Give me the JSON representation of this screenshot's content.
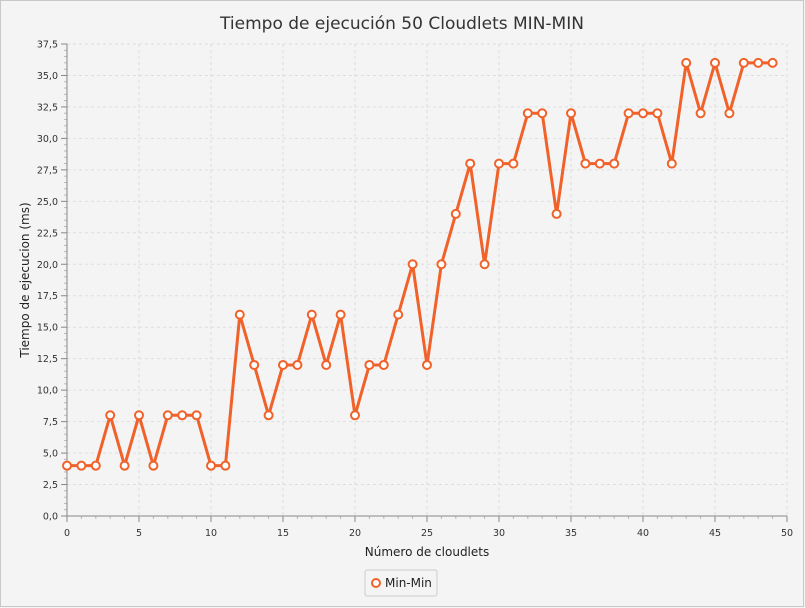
{
  "chart_data": {
    "type": "line",
    "title": "Tiempo de ejecución 50 Cloudlets MIN-MIN",
    "xlabel": "Número de cloudlets",
    "ylabel": "Tiempo de ejecucion (ms)",
    "xlim": [
      0,
      50
    ],
    "ylim": [
      0,
      37.5
    ],
    "x_ticks": [
      "0",
      "5",
      "10",
      "15",
      "20",
      "25",
      "30",
      "35",
      "40",
      "45",
      "50"
    ],
    "y_ticks": [
      "0,0",
      "2,5",
      "5,0",
      "7,5",
      "10,0",
      "12,5",
      "15,0",
      "17,5",
      "20,0",
      "22,5",
      "25,0",
      "27,5",
      "30,0",
      "32,5",
      "35,0",
      "37,5"
    ],
    "grid": true,
    "legend_position": "bottom-center",
    "series": [
      {
        "name": "Min-Min",
        "color": "#f0622a",
        "x": [
          0,
          1,
          2,
          3,
          4,
          5,
          6,
          7,
          8,
          9,
          10,
          11,
          12,
          13,
          14,
          15,
          16,
          17,
          18,
          19,
          20,
          21,
          22,
          23,
          24,
          25,
          26,
          27,
          28,
          29,
          30,
          31,
          32,
          33,
          34,
          35,
          36,
          37,
          38,
          39,
          40,
          41,
          42,
          43,
          44,
          45,
          46,
          47,
          48,
          49
        ],
        "y": [
          4,
          4,
          4,
          8,
          4,
          8,
          4,
          8,
          8,
          8,
          4,
          4,
          16,
          12,
          8,
          12,
          12,
          16,
          12,
          16,
          8,
          12,
          12,
          16,
          20,
          12,
          20,
          24,
          28,
          20,
          28,
          28,
          32,
          32,
          24,
          32,
          28,
          28,
          28,
          32,
          32,
          32,
          28,
          36,
          32,
          36,
          32,
          36,
          36,
          36
        ]
      }
    ]
  }
}
